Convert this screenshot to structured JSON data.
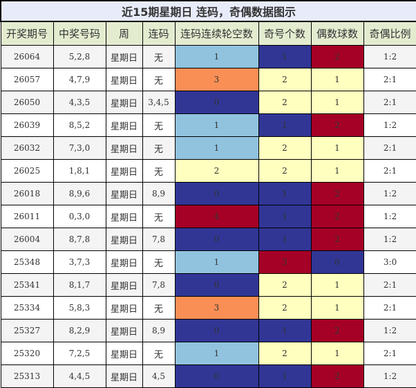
{
  "title": "近15期星期日 连码，奇偶数据图示",
  "headers": [
    "开奖期号",
    "中奖号码",
    "周",
    "连码",
    "连码连续轮空数",
    "奇号个数",
    "偶数球数",
    "奇偶比例"
  ],
  "colors": {
    "lightblue": "#91c3df",
    "orange": "#f98f55",
    "navy": "#313695",
    "red": "#a50026",
    "yellow": "#ffffbf",
    "header_bg": "#e4ecd0",
    "title_bg": "#e8ecfa"
  },
  "rows": [
    {
      "issue": "26064",
      "numbers": "5,2,8",
      "week": "星期日",
      "lian": "无",
      "gap": "1",
      "gap_color": "lightblue",
      "odd": "1",
      "odd_color": "navy",
      "even": "2",
      "even_color": "red",
      "ratio": "1:2"
    },
    {
      "issue": "26057",
      "numbers": "4,7,9",
      "week": "星期日",
      "lian": "无",
      "gap": "3",
      "gap_color": "orange",
      "odd": "2",
      "odd_color": "yellow",
      "even": "1",
      "even_color": "yellow",
      "ratio": "2:1"
    },
    {
      "issue": "26050",
      "numbers": "4,3,5",
      "week": "星期日",
      "lian": "3,4,5",
      "gap": "0",
      "gap_color": "navy",
      "odd": "2",
      "odd_color": "yellow",
      "even": "1",
      "even_color": "yellow",
      "ratio": "2:1"
    },
    {
      "issue": "26039",
      "numbers": "8,5,2",
      "week": "星期日",
      "lian": "无",
      "gap": "1",
      "gap_color": "lightblue",
      "odd": "1",
      "odd_color": "navy",
      "even": "2",
      "even_color": "red",
      "ratio": "1:2"
    },
    {
      "issue": "26032",
      "numbers": "7,3,0",
      "week": "星期日",
      "lian": "无",
      "gap": "1",
      "gap_color": "lightblue",
      "odd": "2",
      "odd_color": "yellow",
      "even": "1",
      "even_color": "yellow",
      "ratio": "2:1"
    },
    {
      "issue": "26025",
      "numbers": "1,8,1",
      "week": "星期日",
      "lian": "无",
      "gap": "2",
      "gap_color": "yellow",
      "odd": "2",
      "odd_color": "yellow",
      "even": "1",
      "even_color": "yellow",
      "ratio": "2:1"
    },
    {
      "issue": "26018",
      "numbers": "8,9,6",
      "week": "星期日",
      "lian": "8,9",
      "gap": "0",
      "gap_color": "navy",
      "odd": "1",
      "odd_color": "navy",
      "even": "2",
      "even_color": "red",
      "ratio": "1:2"
    },
    {
      "issue": "26011",
      "numbers": "0,3,0",
      "week": "星期日",
      "lian": "无",
      "gap": "4",
      "gap_color": "red",
      "odd": "1",
      "odd_color": "navy",
      "even": "2",
      "even_color": "red",
      "ratio": "1:2"
    },
    {
      "issue": "26004",
      "numbers": "8,7,8",
      "week": "星期日",
      "lian": "7,8",
      "gap": "0",
      "gap_color": "navy",
      "odd": "1",
      "odd_color": "navy",
      "even": "2",
      "even_color": "red",
      "ratio": "1:2"
    },
    {
      "issue": "25348",
      "numbers": "3,7,3",
      "week": "星期日",
      "lian": "无",
      "gap": "1",
      "gap_color": "lightblue",
      "odd": "3",
      "odd_color": "red",
      "even": "0",
      "even_color": "navy",
      "ratio": "3:0"
    },
    {
      "issue": "25341",
      "numbers": "8,1,7",
      "week": "星期日",
      "lian": "7,8",
      "gap": "0",
      "gap_color": "navy",
      "odd": "2",
      "odd_color": "yellow",
      "even": "1",
      "even_color": "yellow",
      "ratio": "2:1"
    },
    {
      "issue": "25334",
      "numbers": "5,8,3",
      "week": "星期日",
      "lian": "无",
      "gap": "3",
      "gap_color": "orange",
      "odd": "2",
      "odd_color": "yellow",
      "even": "1",
      "even_color": "yellow",
      "ratio": "2:1"
    },
    {
      "issue": "25327",
      "numbers": "8,2,9",
      "week": "星期日",
      "lian": "8,9",
      "gap": "0",
      "gap_color": "navy",
      "odd": "1",
      "odd_color": "navy",
      "even": "2",
      "even_color": "red",
      "ratio": "1:2"
    },
    {
      "issue": "25320",
      "numbers": "7,2,5",
      "week": "星期日",
      "lian": "无",
      "gap": "1",
      "gap_color": "lightblue",
      "odd": "2",
      "odd_color": "yellow",
      "even": "1",
      "even_color": "yellow",
      "ratio": "2:1"
    },
    {
      "issue": "25313",
      "numbers": "4,4,5",
      "week": "星期日",
      "lian": "4,5",
      "gap": "0",
      "gap_color": "navy",
      "odd": "1",
      "odd_color": "navy",
      "even": "2",
      "even_color": "red",
      "ratio": "1:2"
    }
  ]
}
